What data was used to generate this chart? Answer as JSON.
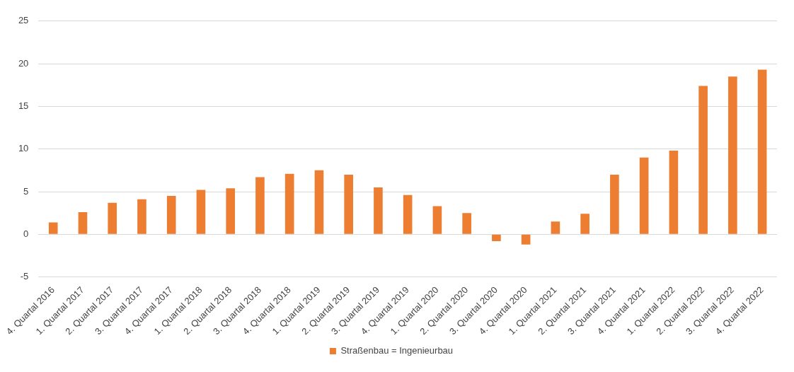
{
  "chart_data": {
    "type": "bar",
    "categories": [
      "4. Quartal 2016",
      "1. Quartal 2017",
      "2. Quartal 2017",
      "3. Quartal 2017",
      "4. Quartal 2017",
      "1. Quartal 2018",
      "2. Quartal 2018",
      "3. Quartal 2018",
      "4. Quartal 2018",
      "1. Quartal 2019",
      "2. Quartal 2019",
      "3. Quartal 2019",
      "4. Quartal 2019",
      "1. Quartal 2020",
      "2. Quartal 2020",
      "3. Quartal 2020",
      "4. Quartal 2020",
      "1. Quartal 2021",
      "2. Quartal 2021",
      "3. Quartal 2021",
      "4. Quartal 2021",
      "1. Quartal 2022",
      "2. Quartal 2022",
      "3. Quartal 2022",
      "4. Quartal 2022"
    ],
    "series": [
      {
        "name": "Straßenbau = Ingenieurbau",
        "color": "#ed7d31",
        "values": [
          1.4,
          2.6,
          3.7,
          4.1,
          4.5,
          5.2,
          5.4,
          6.7,
          7.1,
          7.5,
          7.0,
          5.5,
          4.6,
          3.3,
          2.5,
          -0.8,
          -1.2,
          1.5,
          2.4,
          7.0,
          9.0,
          9.8,
          17.4,
          18.5,
          19.3
        ]
      }
    ],
    "ylim": [
      -5,
      25
    ],
    "yticks": [
      -5,
      0,
      5,
      10,
      15,
      20,
      25
    ],
    "grid": "y",
    "legend": "bottom"
  }
}
